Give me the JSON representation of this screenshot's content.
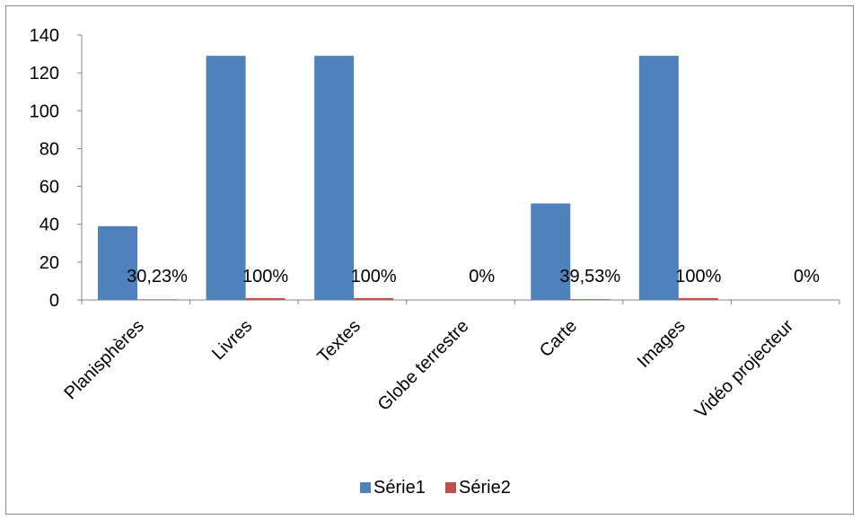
{
  "chart_data": {
    "type": "bar",
    "categories": [
      "Planisphères",
      "Livres",
      "Textes",
      "Globe terrestre",
      "Carte",
      "Images",
      "Vidéo projecteur"
    ],
    "series": [
      {
        "name": "Série1",
        "values": [
          39,
          129,
          129,
          0,
          51,
          129,
          0
        ],
        "color": "#4f81bd"
      },
      {
        "name": "Série2",
        "values": [
          0.3023,
          1,
          1,
          0,
          0.3953,
          1,
          0
        ],
        "color": "#c0504d"
      }
    ],
    "data_labels": [
      "30,23%",
      "100%",
      "100%",
      "0%",
      "39,53%",
      "100%",
      "0%"
    ],
    "y_ticks": [
      "0",
      "20",
      "40",
      "60",
      "80",
      "100",
      "120",
      "140"
    ],
    "ylim": [
      0,
      140
    ],
    "grid": false,
    "legend_position": "bottom",
    "title": "",
    "xlabel": "",
    "ylabel": ""
  }
}
